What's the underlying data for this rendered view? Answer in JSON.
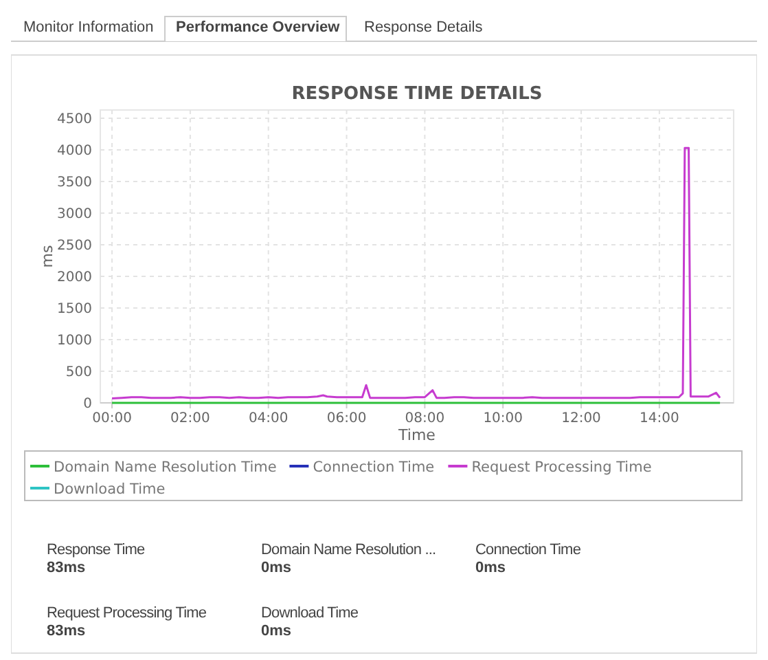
{
  "chart_data": [
    {
      "type": "other",
      "annotations": [
        "Monitor Information",
        "Performance Overview",
        "Response Details"
      ]
    },
    {
      "type": "line",
      "title": "RESPONSE TIME DETAILS",
      "xlabel": "Time",
      "ylabel": "ms",
      "xlim": [
        -0.3,
        15.9
      ],
      "ylim": [
        0,
        4630
      ],
      "xticks": [
        {
          "value": 0,
          "label": "00:00"
        },
        {
          "value": 2,
          "label": "02:00"
        },
        {
          "value": 4,
          "label": "04:00"
        },
        {
          "value": 6,
          "label": "06:00"
        },
        {
          "value": 8,
          "label": "08:00"
        },
        {
          "value": 10,
          "label": "10:00"
        },
        {
          "value": 12,
          "label": "12:00"
        },
        {
          "value": 14,
          "label": "14:00"
        }
      ],
      "yticks": [
        0,
        500,
        1000,
        1500,
        2000,
        2500,
        3000,
        3500,
        4000,
        4500
      ],
      "grid": true,
      "legend": "bottom",
      "marker": "none",
      "line_style": "solid",
      "series": [
        {
          "name": "Domain Name Resolution Time",
          "color": "#2dbf3a",
          "x": [
            0,
            15.55
          ],
          "values": [
            0,
            0
          ]
        },
        {
          "name": "Connection Time",
          "color": "#2630b8"
        },
        {
          "name": "Request Processing Time",
          "color": "#c63bcf",
          "x": [
            0,
            0.25,
            0.5,
            0.75,
            1,
            1.25,
            1.5,
            1.75,
            2,
            2.25,
            2.5,
            2.75,
            3,
            3.25,
            3.5,
            3.75,
            4,
            4.25,
            4.5,
            4.75,
            5,
            5.25,
            5.4,
            5.5,
            5.75,
            6,
            6.25,
            6.4,
            6.5,
            6.6,
            6.75,
            7,
            7.25,
            7.5,
            7.75,
            8,
            8.2,
            8.3,
            8.5,
            8.75,
            9,
            9.25,
            9.5,
            9.75,
            10,
            10.25,
            10.5,
            10.75,
            11,
            11.25,
            11.5,
            11.75,
            12,
            12.25,
            12.5,
            12.75,
            13,
            13.25,
            13.5,
            13.75,
            14,
            14.25,
            14.5,
            14.6,
            14.65,
            14.75,
            14.8,
            15,
            15.25,
            15.45,
            15.55
          ],
          "values": [
            70,
            80,
            90,
            90,
            80,
            80,
            80,
            90,
            80,
            80,
            90,
            90,
            80,
            90,
            80,
            80,
            90,
            80,
            90,
            90,
            90,
            100,
            120,
            100,
            90,
            90,
            90,
            90,
            280,
            80,
            80,
            80,
            80,
            80,
            90,
            90,
            200,
            80,
            80,
            90,
            90,
            80,
            80,
            80,
            80,
            80,
            80,
            90,
            80,
            80,
            80,
            80,
            80,
            80,
            80,
            80,
            80,
            80,
            90,
            90,
            90,
            90,
            90,
            150,
            4030,
            4030,
            100,
            100,
            100,
            160,
            80
          ]
        },
        {
          "name": "Download Time",
          "color": "#2ec4c4"
        }
      ]
    },
    {
      "type": "other",
      "annotations": [
        "Response Time",
        "83ms",
        "Domain Name Resolution ...",
        "0ms",
        "Connection Time",
        "0ms",
        "Request Processing Time",
        "83ms",
        "Download Time",
        "0ms"
      ]
    }
  ]
}
